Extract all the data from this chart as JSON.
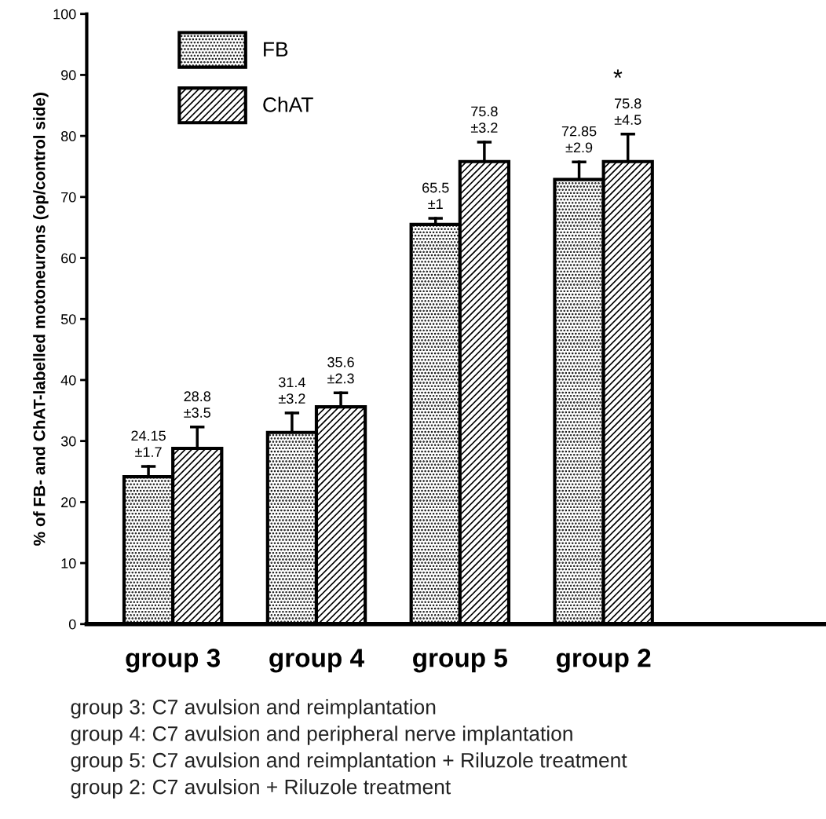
{
  "chart_data": {
    "type": "bar",
    "ylabel": "% of FB- and ChAT-labelled motoneurons (op/control side)",
    "categories": [
      "group 3",
      "group 4",
      "group 5",
      "group 2"
    ],
    "series": [
      {
        "name": "FB",
        "color": "#000000",
        "values": [
          24.15,
          31.4,
          65.5,
          72.85
        ],
        "errors": [
          1.7,
          3.2,
          1,
          2.9
        ],
        "value_labels": [
          "24.15\n±1.7",
          "31.4\n±3.2",
          "65.5\n±1",
          "72.85\n±2.9"
        ]
      },
      {
        "name": "ChAT",
        "color": "#000000",
        "values": [
          28.8,
          35.6,
          75.8,
          75.8
        ],
        "errors": [
          3.5,
          2.3,
          3.2,
          4.5
        ],
        "value_labels": [
          "28.8\n±3.5",
          "35.6\n±2.3",
          "75.8\n±3.2",
          "75.8\n±4.5"
        ]
      }
    ],
    "ylim": [
      0,
      100
    ],
    "yticks": [
      0,
      10,
      20,
      30,
      40,
      50,
      60,
      70,
      80,
      90,
      100
    ],
    "grid": false,
    "legend": "top left",
    "annotations": [
      "*",
      "group 3: C7 avulsion and reimplantation",
      "group 4: C7 avulsion and peripheral nerve implantation",
      "group 5: C7 avulsion and reimplantation + Riluzole treatment",
      "group 2: C7 avulsion + Riluzole treatment"
    ]
  }
}
